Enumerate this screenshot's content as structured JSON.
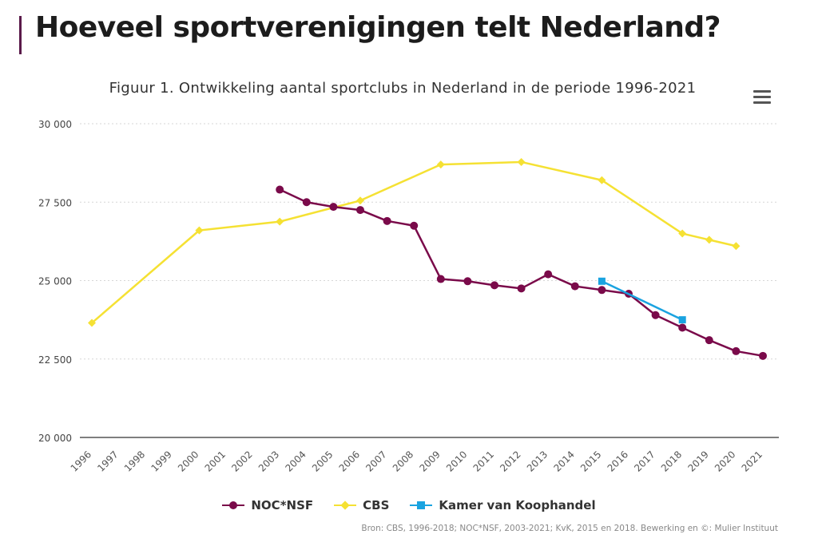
{
  "header": {
    "title": "Hoeveel sportverenigingen telt Nederland?",
    "accent_color": "#5a1a4a"
  },
  "menu": {
    "icon": "hamburger-menu-icon"
  },
  "source_note": "Bron: CBS, 1996-2018; NOC*NSF, 2003-2021; KvK, 2015 en 2018. Bewerking en ©: Mulier Instituut",
  "chart_data": {
    "type": "line",
    "title": "Figuur 1. Ontwikkeling aantal sportclubs in Nederland in de periode 1996-2021",
    "xlabel": "",
    "ylabel": "",
    "categories": [
      "1996",
      "1997",
      "1998",
      "1999",
      "2000",
      "2001",
      "2002",
      "2003",
      "2004",
      "2005",
      "2006",
      "2007",
      "2008",
      "2009",
      "2010",
      "2011",
      "2012",
      "2013",
      "2014",
      "2015",
      "2016",
      "2017",
      "2018",
      "2019",
      "2020",
      "2021"
    ],
    "ylim": [
      20000,
      30000
    ],
    "yticks": [
      20000,
      22500,
      25000,
      27500,
      30000
    ],
    "ytick_labels": [
      "20 000",
      "22 500",
      "25 000",
      "27 500",
      "30 000"
    ],
    "grid": true,
    "legend_position": "bottom",
    "series": [
      {
        "name": "NOC*NSF",
        "color": "#7a0a4a",
        "marker": "circle",
        "x": [
          "2003",
          "2004",
          "2005",
          "2006",
          "2007",
          "2008",
          "2009",
          "2010",
          "2011",
          "2012",
          "2013",
          "2014",
          "2015",
          "2016",
          "2017",
          "2018",
          "2019",
          "2020",
          "2021"
        ],
        "values": [
          27900,
          27500,
          27350,
          27250,
          26900,
          26750,
          25050,
          24980,
          24850,
          24750,
          25200,
          24820,
          24700,
          24580,
          23900,
          23500,
          23100,
          22750,
          22600
        ]
      },
      {
        "name": "CBS",
        "color": "#f5e133",
        "marker": "diamond",
        "x": [
          "1996",
          "2000",
          "2003",
          "2006",
          "2009",
          "2012",
          "2015",
          "2018",
          "2019",
          "2020"
        ],
        "values": [
          23650,
          26600,
          26880,
          27550,
          28700,
          28780,
          28200,
          26500,
          26300,
          26100
        ]
      },
      {
        "name": "Kamer van Koophandel",
        "color": "#1aa3e0",
        "marker": "square",
        "x": [
          "2015",
          "2018"
        ],
        "values": [
          24980,
          23750
        ]
      }
    ]
  }
}
